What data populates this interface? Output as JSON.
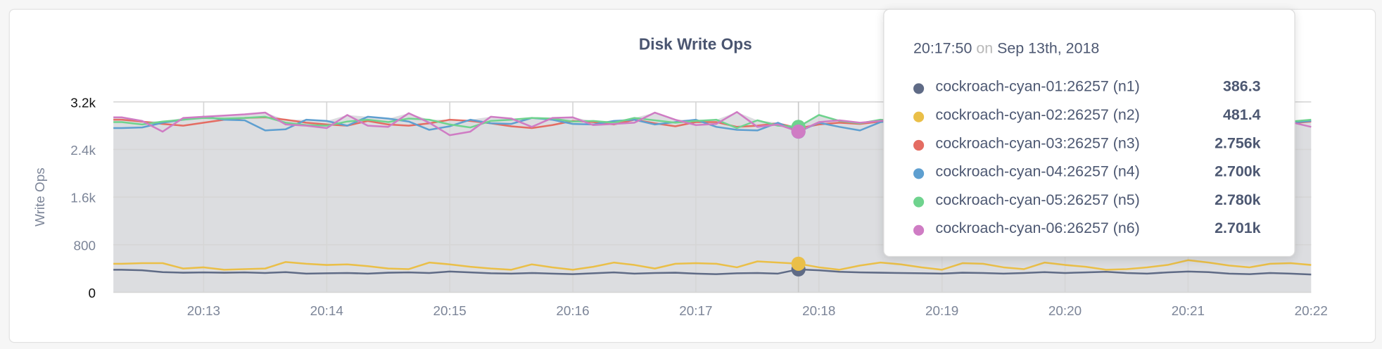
{
  "chart_data": {
    "type": "line",
    "title": "Disk Write Ops",
    "ylabel": "Write Ops",
    "xlabel": "",
    "ylim": [
      0,
      3200
    ],
    "y_ticks": [
      "0",
      "800",
      "1.6k",
      "2.4k",
      "3.2k"
    ],
    "y_tick_values": [
      0,
      800,
      1600,
      2400,
      3200
    ],
    "x_ticks": [
      "20:13",
      "20:14",
      "20:15",
      "20:16",
      "20:17",
      "20:18",
      "20:19",
      "20:20",
      "20:21",
      "20:22"
    ],
    "x_start": "20:12:20",
    "x_interval_seconds": 10,
    "grid": true,
    "series": [
      {
        "name": "cockroach-cyan-01:26257 (n1)",
        "color": "#5f6b86",
        "values": [
          380,
          370,
          340,
          330,
          335,
          330,
          335,
          325,
          340,
          315,
          320,
          325,
          315,
          330,
          335,
          325,
          350,
          335,
          320,
          315,
          325,
          315,
          305,
          320,
          335,
          315,
          325,
          330,
          315,
          305,
          320,
          325,
          315,
          386,
          370,
          345,
          335,
          330,
          325,
          320,
          315,
          330,
          325,
          315,
          325,
          340,
          325,
          335,
          345,
          325,
          315,
          335,
          350,
          340,
          315,
          305,
          325,
          315,
          300
        ]
      },
      {
        "name": "cockroach-cyan-02:26257 (n2)",
        "color": "#eabf48",
        "values": [
          480,
          490,
          490,
          400,
          420,
          380,
          390,
          400,
          510,
          480,
          460,
          470,
          440,
          400,
          390,
          500,
          470,
          430,
          400,
          380,
          470,
          420,
          380,
          430,
          500,
          460,
          400,
          480,
          490,
          480,
          420,
          520,
          500,
          481,
          420,
          380,
          450,
          500,
          470,
          420,
          380,
          490,
          480,
          420,
          390,
          500,
          460,
          430,
          380,
          390,
          420,
          460,
          540,
          500,
          450,
          420,
          480,
          490,
          460
        ]
      },
      {
        "name": "cockroach-cyan-03:26257 (n3)",
        "color": "#e46c62",
        "values": [
          2900,
          2870,
          2830,
          2800,
          2850,
          2900,
          2930,
          2940,
          2900,
          2850,
          2820,
          2800,
          2880,
          2820,
          2800,
          2840,
          2900,
          2880,
          2840,
          2790,
          2760,
          2810,
          2880,
          2860,
          2820,
          2900,
          2840,
          2790,
          2860,
          2860,
          2780,
          2800,
          2840,
          2756,
          2820,
          2850,
          2830,
          2870,
          2900,
          2880,
          2860,
          2830,
          2900,
          2880,
          2840,
          2870,
          2850,
          2880,
          2900,
          2830,
          2860,
          2890,
          2840,
          2870,
          2880,
          2900,
          2860,
          2840,
          2870
        ]
      },
      {
        "name": "cockroach-cyan-04:26257 (n4)",
        "color": "#5e9fd0",
        "values": [
          2760,
          2770,
          2850,
          2900,
          2950,
          2900,
          2890,
          2720,
          2740,
          2900,
          2880,
          2800,
          2950,
          2920,
          2870,
          2730,
          2790,
          2900,
          2840,
          2830,
          2930,
          2900,
          2830,
          2820,
          2880,
          2900,
          2820,
          2860,
          2900,
          2780,
          2730,
          2720,
          2850,
          2700,
          2850,
          2780,
          2720,
          2860,
          2900,
          2850,
          2820,
          2880,
          2830,
          2750,
          2800,
          2880,
          2860,
          2840,
          2900,
          2820,
          2880,
          2850,
          2800,
          2900,
          2880,
          2840,
          2860,
          2850,
          2880
        ]
      },
      {
        "name": "cockroach-cyan-05:26257 (n5)",
        "color": "#6fd38e",
        "values": [
          2860,
          2820,
          2870,
          2900,
          2930,
          2920,
          2930,
          2950,
          2850,
          2810,
          2800,
          2870,
          2900,
          2860,
          2920,
          2900,
          2820,
          2770,
          2880,
          2900,
          2930,
          2920,
          2870,
          2880,
          2850,
          2930,
          2890,
          2850,
          2880,
          2900,
          2760,
          2890,
          2800,
          2780,
          2980,
          2880,
          2840,
          2900,
          2870,
          2920,
          2880,
          2860,
          2900,
          2830,
          2870,
          2890,
          2920,
          2900,
          2880,
          2850,
          2900,
          2870,
          2920,
          2880,
          2860,
          2900,
          2890,
          2870,
          2900
        ]
      },
      {
        "name": "cockroach-cyan-06:26257 (n6)",
        "color": "#cf7cc4",
        "values": [
          2940,
          2880,
          2700,
          2930,
          2950,
          2970,
          2990,
          3020,
          2820,
          2800,
          2760,
          2980,
          2800,
          2780,
          3010,
          2850,
          2640,
          2700,
          2950,
          2920,
          2780,
          2930,
          2940,
          2810,
          2830,
          2850,
          3020,
          2900,
          2810,
          2830,
          3030,
          2780,
          2820,
          2701,
          2860,
          2890,
          2850,
          2880,
          2900,
          2830,
          2870,
          2880,
          2820,
          2890,
          2900,
          2860,
          2880,
          2840,
          2880,
          2900,
          2860,
          2840,
          2880,
          2900,
          2870,
          2850,
          2830,
          2860,
          2780
        ]
      }
    ],
    "tooltip": {
      "time": "20:17:50",
      "on": "on",
      "date": "Sep 13th, 2018",
      "rows": [
        {
          "name": "cockroach-cyan-01:26257 (n1)",
          "value": "386.3",
          "color": "#5f6b86"
        },
        {
          "name": "cockroach-cyan-02:26257 (n2)",
          "value": "481.4",
          "color": "#eabf48"
        },
        {
          "name": "cockroach-cyan-03:26257 (n3)",
          "value": "2.756k",
          "color": "#e46c62"
        },
        {
          "name": "cockroach-cyan-04:26257 (n4)",
          "value": "2.700k",
          "color": "#5e9fd0"
        },
        {
          "name": "cockroach-cyan-05:26257 (n5)",
          "value": "2.780k",
          "color": "#6fd38e"
        },
        {
          "name": "cockroach-cyan-06:26257 (n6)",
          "value": "2.701k",
          "color": "#cf7cc4"
        }
      ]
    }
  }
}
